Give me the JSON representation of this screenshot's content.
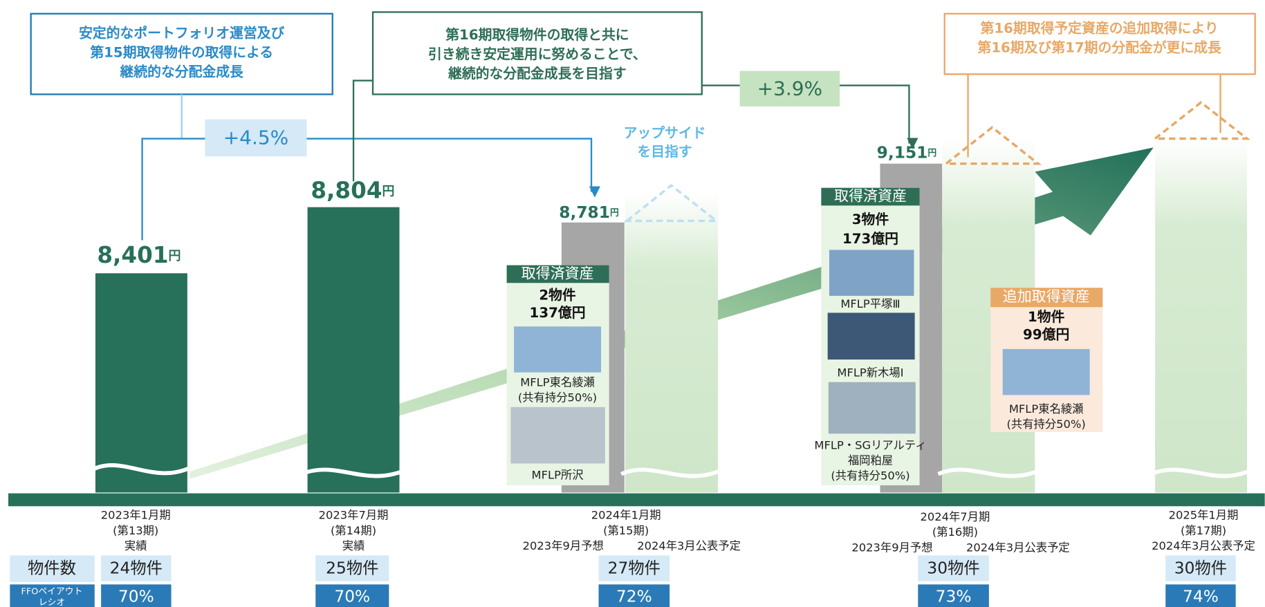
{
  "callouts": [
    {
      "lines": [
        "安定的なポートフォリオ運営及び",
        "第15期取得物件の取得による",
        "継続的な分配金成長"
      ]
    },
    {
      "lines": [
        "第16期取得物件の取得と共に",
        "引き続き安定運用に努めることで、",
        "継続的な分配金成長を目指す"
      ]
    },
    {
      "lines": [
        "第16期取得予定資産の追加取得により",
        "第16期及び第17期の分配金が更に成長"
      ]
    }
  ],
  "growth_labels": [
    "+4.5%",
    "+3.9%"
  ],
  "upside": [
    "アップサイド",
    "を目指す"
  ],
  "periods": [
    {
      "lines": [
        "2023年1月期",
        "(第13期)",
        "実績"
      ],
      "dps": "8,401",
      "unit": "円",
      "properties": "24物件",
      "payout": "70%"
    },
    {
      "lines": [
        "2023年7月期",
        "(第14期)",
        "実績"
      ],
      "dps": "8,804",
      "unit": "円",
      "properties": "25物件",
      "payout": "70%"
    },
    {
      "lines": [
        "2024年1月期",
        "(第15期)"
      ],
      "notes": [
        "2023年9月予想",
        "2024年3月公表予定"
      ],
      "dps": "8,781",
      "unit": "円",
      "properties": "27物件",
      "payout": "72%"
    },
    {
      "lines": [
        "2024年7月期",
        "(第16期)"
      ],
      "notes": [
        "2023年9月予想",
        "2024年3月公表予定"
      ],
      "dps": "9,151",
      "unit": "円",
      "properties": "30物件",
      "payout": "73%"
    },
    {
      "lines": [
        "2025年1月期",
        "(第17期)",
        "2024年3月公表予定"
      ],
      "properties": "30物件",
      "payout": "74%"
    }
  ],
  "assets": [
    {
      "header": "取得済資産",
      "count": "2物件",
      "amount": "137億円",
      "names": [
        "MFLP東名綾瀬",
        "(共有持分50%)",
        "MFLP所沢"
      ]
    },
    {
      "header": "取得済資産",
      "count": "3物件",
      "amount": "173億円",
      "names": [
        "MFLP平塚Ⅲ",
        "MFLP新木場Ⅰ",
        "MFLP・SGリアルティ",
        "福岡粕屋",
        "(共有持分50%)"
      ]
    },
    {
      "header": "追加取得資産",
      "count": "1物件",
      "amount": "99億円",
      "names": [
        "MFLP東名綾瀬",
        "(共有持分50%)"
      ]
    }
  ],
  "row_labels": {
    "properties": "物件数",
    "payout": [
      "FFOペイアウト",
      "レシオ"
    ]
  }
}
